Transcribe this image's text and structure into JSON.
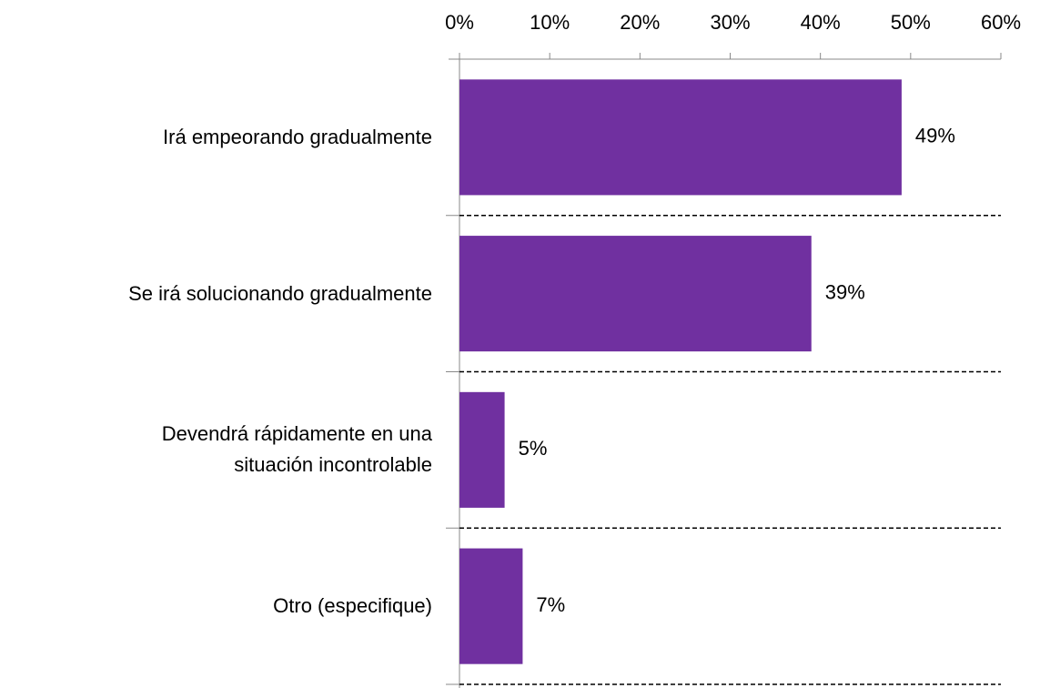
{
  "chart_data": {
    "type": "bar",
    "orientation": "horizontal",
    "categories": [
      "Irá empeorando gradualmente",
      "Se irá solucionando gradualmente",
      "Devendrá rápidamente en una\nsituación incontrolable",
      "Otro (especifique)"
    ],
    "values": [
      49,
      39,
      5,
      7
    ],
    "value_labels": [
      "49%",
      "39%",
      "5%",
      "7%"
    ],
    "color": "#7030a0",
    "xlim": [
      0,
      60
    ],
    "xticks": [
      {
        "value": 0,
        "label": "0%"
      },
      {
        "value": 10,
        "label": "10%"
      },
      {
        "value": 20,
        "label": "20%"
      },
      {
        "value": 30,
        "label": "30%"
      },
      {
        "value": 40,
        "label": "40%"
      },
      {
        "value": 50,
        "label": "50%"
      },
      {
        "value": 60,
        "label": "60%"
      }
    ],
    "grid": true,
    "grid_style": "dashed"
  }
}
